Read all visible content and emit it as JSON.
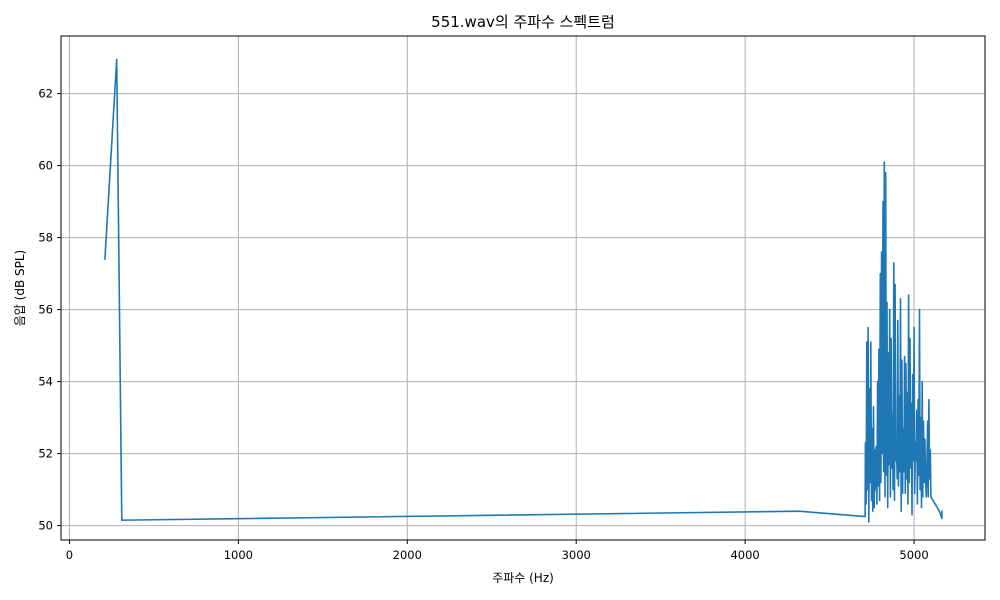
{
  "chart_data": {
    "type": "line",
    "title": "551.wav의 주파수 스펙트럼",
    "xlabel": "주파수 (Hz)",
    "ylabel": "음압 (dB SPL)",
    "xlim": [
      -50,
      5420
    ],
    "ylim": [
      49.6,
      63.6
    ],
    "xticks": [
      0,
      1000,
      2000,
      3000,
      4000,
      5000
    ],
    "yticks": [
      50,
      52,
      54,
      56,
      58,
      60,
      62
    ],
    "grid": true,
    "legend": "none",
    "series": [
      {
        "color": "#1f77b4",
        "x": [
          210,
          280,
          310,
          4320,
          4710,
          4712,
          4716,
          4720,
          4724,
          4728,
          4732,
          4736,
          4740,
          4744,
          4748,
          4752,
          4756,
          4760,
          4764,
          4768,
          4772,
          4776,
          4780,
          4784,
          4788,
          4792,
          4796,
          4800,
          4804,
          4808,
          4812,
          4816,
          4820,
          4824,
          4828,
          4832,
          4836,
          4840,
          4844,
          4848,
          4852,
          4856,
          4860,
          4864,
          4868,
          4872,
          4876,
          4880,
          4884,
          4888,
          4892,
          4896,
          4900,
          4904,
          4908,
          4912,
          4916,
          4920,
          4924,
          4928,
          4932,
          4936,
          4940,
          4944,
          4948,
          4952,
          4956,
          4960,
          4964,
          4968,
          4972,
          4976,
          4980,
          4984,
          4988,
          4992,
          4996,
          5000,
          5004,
          5008,
          5012,
          5016,
          5020,
          5024,
          5028,
          5032,
          5036,
          5040,
          5044,
          5048,
          5052,
          5056,
          5060,
          5064,
          5068,
          5072,
          5076,
          5080,
          5084,
          5088,
          5092,
          5096,
          5100,
          5150,
          5165,
          5165
        ],
        "y": [
          57.4,
          62.95,
          50.15,
          50.4,
          50.25,
          52.3,
          50.6,
          55.1,
          51.0,
          55.5,
          50.1,
          53.8,
          51.2,
          55.1,
          50.7,
          52.7,
          50.4,
          53.3,
          50.5,
          52.1,
          51.0,
          52.2,
          50.6,
          54.0,
          51.1,
          54.9,
          50.7,
          57.0,
          51.2,
          57.6,
          52.0,
          59.0,
          51.5,
          60.1,
          50.8,
          59.8,
          51.4,
          56.2,
          50.5,
          54.8,
          51.7,
          56.0,
          50.8,
          55.2,
          51.6,
          53.1,
          51.0,
          57.3,
          50.7,
          56.7,
          51.8,
          52.2,
          51.3,
          55.7,
          51.1,
          53.6,
          51.5,
          56.3,
          50.4,
          54.6,
          50.9,
          52.7,
          51.5,
          54.7,
          50.9,
          54.5,
          51.3,
          53.7,
          50.6,
          56.4,
          51.2,
          55.2,
          51.6,
          53.4,
          50.3,
          54.2,
          51.8,
          55.5,
          50.9,
          52.3,
          51.8,
          53.2,
          50.6,
          53.5,
          51.4,
          56.0,
          51.0,
          53.0,
          50.5,
          54.0,
          50.8,
          52.9,
          51.2,
          52.4,
          51.4,
          50.8,
          51.6,
          52.9,
          50.8,
          53.5,
          51.3,
          52.1,
          50.8,
          50.4,
          50.2,
          50.4
        ]
      }
    ]
  }
}
